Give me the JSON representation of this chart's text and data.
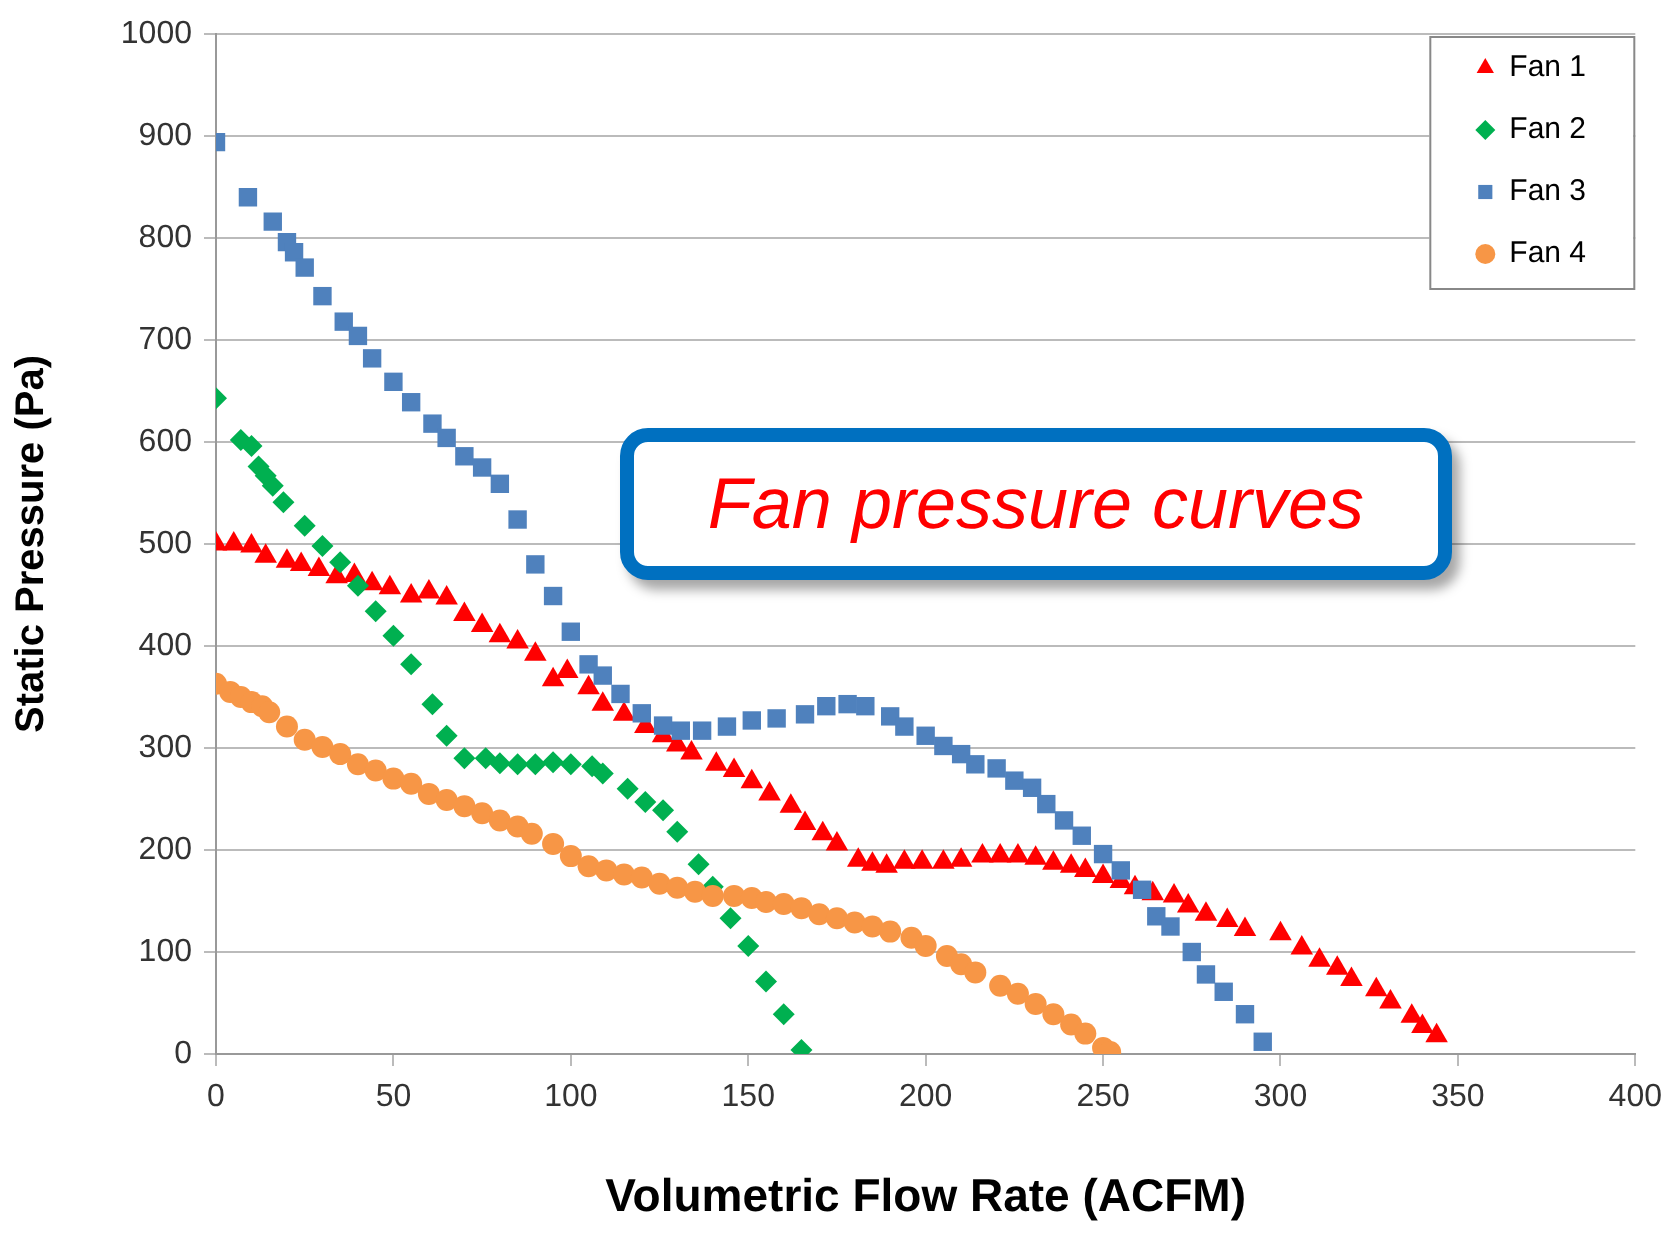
{
  "chart_data": {
    "type": "scatter",
    "xlabel": "Volumetric Flow Rate (ACFM)",
    "ylabel": "Static Pressure (Pa)",
    "xlim": [
      0,
      400
    ],
    "xticks": [
      0,
      50,
      100,
      150,
      200,
      250,
      300,
      350,
      400
    ],
    "ylim": [
      0,
      1000
    ],
    "yticks": [
      0,
      100,
      200,
      300,
      400,
      500,
      600,
      700,
      800,
      900,
      1000
    ],
    "grid": "y",
    "legend": "top right",
    "annotations": [
      "Fan pressure curves"
    ],
    "series": [
      {
        "name": "Fan 1",
        "color": "#ff0000",
        "marker": "triangle",
        "x": [
          0,
          5,
          10,
          14,
          20,
          24,
          29,
          34,
          39,
          44,
          49,
          55,
          60,
          65,
          70,
          75,
          80,
          85,
          90,
          95,
          99,
          105,
          109,
          115,
          121,
          126,
          130,
          134,
          141,
          146,
          151,
          156,
          162,
          166,
          171,
          175,
          181,
          185,
          189,
          194,
          199,
          205,
          210,
          216,
          221,
          226,
          231,
          236,
          241,
          245,
          250,
          255,
          259,
          264,
          270,
          274,
          279,
          285,
          290,
          300,
          306,
          311,
          316,
          320,
          327,
          331,
          337,
          340,
          344
        ],
        "values": [
          500,
          500,
          498,
          488,
          483,
          480,
          475,
          468,
          469,
          461,
          457,
          449,
          453,
          447,
          431,
          420,
          410,
          404,
          392,
          367,
          375,
          359,
          343,
          333,
          321,
          312,
          303,
          295,
          284,
          278,
          267,
          255,
          243,
          226,
          216,
          206,
          190,
          186,
          184,
          188,
          188,
          188,
          190,
          194,
          194,
          194,
          192,
          187,
          184,
          180,
          174,
          169,
          163,
          157,
          155,
          145,
          137,
          131,
          122,
          118,
          104,
          92,
          84,
          73,
          63,
          51,
          37,
          27,
          18
        ]
      },
      {
        "name": "Fan 2",
        "color": "#00b050",
        "marker": "diamond",
        "x": [
          0,
          7,
          10,
          12,
          14,
          16,
          19,
          25,
          30,
          35,
          40,
          45,
          50,
          55,
          61,
          65,
          70,
          76,
          80,
          85,
          90,
          95,
          100,
          106,
          109,
          116,
          121,
          126,
          130,
          136,
          140,
          145,
          150,
          155,
          160,
          165
        ],
        "values": [
          643,
          602,
          596,
          576,
          567,
          557,
          541,
          518,
          498,
          482,
          459,
          434,
          410,
          382,
          343,
          312,
          290,
          290,
          285,
          284,
          284,
          286,
          284,
          282,
          275,
          260,
          247,
          239,
          218,
          186,
          164,
          133,
          106,
          71,
          39,
          4
        ]
      },
      {
        "name": "Fan 3",
        "color": "#4f81bd",
        "marker": "square",
        "x": [
          0,
          9,
          16,
          20,
          22,
          25,
          30,
          36,
          40,
          44,
          50,
          55,
          61,
          65,
          70,
          75,
          80,
          85,
          90,
          95,
          100,
          105,
          109,
          114,
          120,
          126,
          131,
          137,
          144,
          151,
          158,
          166,
          172,
          178,
          183,
          190,
          194,
          200,
          205,
          210,
          214,
          220,
          225,
          230,
          234,
          239,
          244,
          250,
          255,
          261,
          265,
          269,
          275,
          279,
          284,
          290,
          295
        ],
        "values": [
          894,
          840,
          816,
          796,
          786,
          771,
          743,
          718,
          704,
          682,
          659,
          639,
          618,
          604,
          586,
          575,
          559,
          524,
          480,
          449,
          414,
          382,
          371,
          353,
          334,
          322,
          317,
          317,
          321,
          327,
          329,
          333,
          341,
          343,
          341,
          331,
          321,
          312,
          302,
          294,
          284,
          280,
          268,
          261,
          245,
          229,
          214,
          196,
          180,
          161,
          135,
          125,
          100,
          78,
          61,
          39,
          12
        ]
      },
      {
        "name": "Fan 4",
        "color": "#f79646",
        "marker": "circle",
        "x": [
          0,
          4,
          7,
          10,
          13,
          15,
          20,
          25,
          30,
          35,
          40,
          45,
          50,
          55,
          60,
          65,
          70,
          75,
          80,
          85,
          89,
          95,
          100,
          105,
          110,
          115,
          120,
          125,
          130,
          135,
          140,
          146,
          151,
          155,
          160,
          165,
          170,
          175,
          180,
          185,
          190,
          196,
          200,
          206,
          210,
          214,
          221,
          226,
          231,
          236,
          241,
          245,
          250,
          252
        ],
        "values": [
          363,
          355,
          350,
          345,
          341,
          335,
          321,
          308,
          301,
          294,
          284,
          278,
          270,
          265,
          255,
          249,
          243,
          236,
          229,
          223,
          216,
          206,
          194,
          184,
          180,
          176,
          173,
          167,
          163,
          159,
          155,
          155,
          153,
          149,
          147,
          143,
          137,
          133,
          129,
          125,
          120,
          114,
          106,
          96,
          88,
          80,
          67,
          59,
          49,
          39,
          29,
          20,
          6,
          2
        ]
      }
    ]
  }
}
